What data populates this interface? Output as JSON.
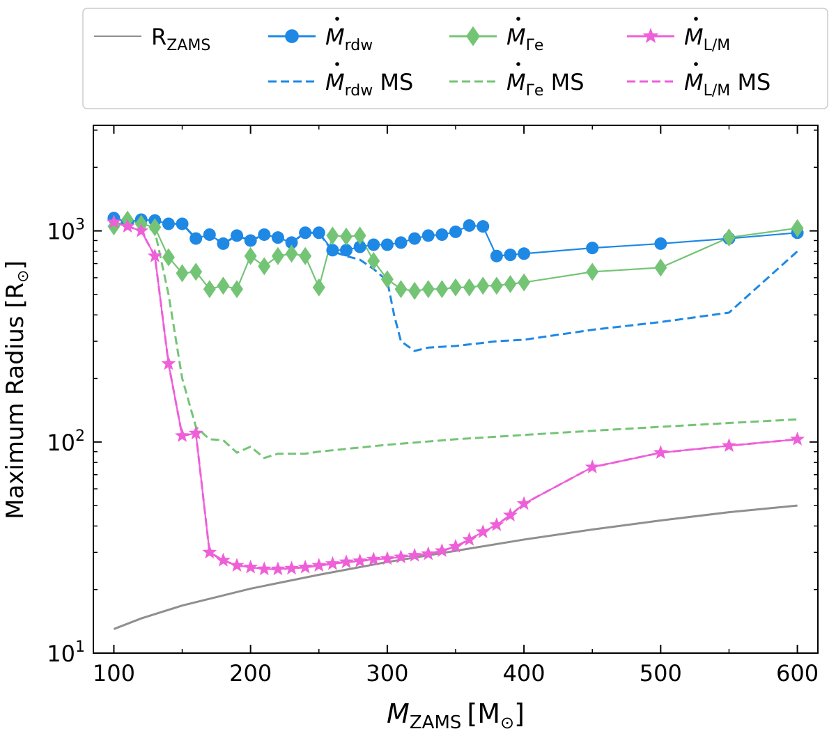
{
  "chart_data": {
    "type": "line",
    "title": "",
    "xlabel": "M_ZAMS [M⊙]",
    "xlabel_parts": {
      "main": "M",
      "sub": "ZAMS",
      "unit": "[M",
      "unit_sym": "⊙",
      "unit_close": "]"
    },
    "ylabel": "Maximum Radius [R⊙]",
    "ylabel_parts": {
      "main": "Maximum Radius [R",
      "sym": "⊙",
      "close": "]"
    },
    "xlim": [
      85,
      615
    ],
    "ylim": [
      10,
      3162
    ],
    "yscale": "log",
    "xticks": [
      100,
      200,
      300,
      400,
      500,
      600
    ],
    "xtick_labels": [
      "100",
      "200",
      "300",
      "400",
      "500",
      "600"
    ],
    "yticks_major": [
      10,
      100,
      1000
    ],
    "ytick_labels": [
      {
        "base": "10",
        "exp": "1"
      },
      {
        "base": "10",
        "exp": "2"
      },
      {
        "base": "10",
        "exp": "3"
      }
    ],
    "legend_position": "top (outside)",
    "series": [
      {
        "name": "R_ZAMS",
        "label_main": "R",
        "label_sub": "ZAMS",
        "label_suffix": "",
        "color": "#8f8f8f",
        "dash": "solid",
        "marker": "none",
        "x": [
          100,
          120,
          150,
          200,
          250,
          300,
          350,
          400,
          450,
          500,
          550,
          600
        ],
        "y": [
          13,
          14.6,
          16.8,
          20.2,
          23.5,
          27,
          30.5,
          34.5,
          38.5,
          42.5,
          46.5,
          50
        ]
      },
      {
        "name": "Ṁrdw",
        "label_main": "M",
        "label_sub": "rdw",
        "label_suffix": "",
        "color": "#1e88e5",
        "dash": "solid",
        "marker": "circle",
        "x": [
          100,
          110,
          120,
          130,
          140,
          150,
          160,
          170,
          180,
          190,
          200,
          210,
          220,
          230,
          240,
          250,
          260,
          270,
          280,
          290,
          300,
          310,
          320,
          330,
          340,
          350,
          360,
          370,
          380,
          390,
          400,
          450,
          500,
          550,
          600
        ],
        "y": [
          1150,
          1100,
          1130,
          1120,
          1080,
          1080,
          920,
          960,
          870,
          950,
          900,
          960,
          930,
          880,
          980,
          980,
          810,
          810,
          840,
          860,
          860,
          880,
          920,
          950,
          960,
          990,
          1060,
          1050,
          760,
          770,
          780,
          830,
          870,
          920,
          980
        ]
      },
      {
        "name": "Ṁrdw MS",
        "label_main": "M",
        "label_sub": "rdw",
        "label_suffix": " MS",
        "color": "#1e88e5",
        "dash": "dashed",
        "marker": "none",
        "x": [
          100,
          110,
          120,
          130,
          140,
          150,
          160,
          170,
          180,
          190,
          200,
          210,
          220,
          230,
          240,
          250,
          260,
          270,
          280,
          290,
          300,
          305,
          310,
          320,
          330,
          350,
          380,
          400,
          450,
          500,
          550,
          600
        ],
        "y": [
          1150,
          1100,
          1130,
          1120,
          1080,
          1080,
          920,
          960,
          870,
          950,
          900,
          960,
          930,
          880,
          980,
          980,
          800,
          760,
          730,
          660,
          580,
          400,
          300,
          270,
          280,
          285,
          300,
          305,
          340,
          370,
          410,
          800
        ]
      },
      {
        "name": "ṀΓe",
        "label_main": "M",
        "label_sub": "Γe",
        "label_suffix": "",
        "color": "#74c476",
        "dash": "solid",
        "marker": "diamond",
        "x": [
          100,
          110,
          120,
          130,
          140,
          150,
          160,
          170,
          180,
          190,
          200,
          210,
          220,
          230,
          240,
          250,
          260,
          270,
          280,
          290,
          300,
          310,
          320,
          330,
          340,
          350,
          360,
          370,
          380,
          390,
          400,
          450,
          500,
          550,
          600
        ],
        "y": [
          1050,
          1130,
          1080,
          1040,
          750,
          630,
          640,
          530,
          550,
          530,
          760,
          680,
          760,
          780,
          760,
          540,
          950,
          940,
          950,
          720,
          590,
          530,
          520,
          530,
          530,
          540,
          540,
          550,
          550,
          560,
          570,
          640,
          670,
          930,
          1030
        ]
      },
      {
        "name": "ṀΓe MS",
        "label_main": "M",
        "label_sub": "Γe",
        "label_suffix": " MS",
        "color": "#74c476",
        "dash": "dashed",
        "marker": "none",
        "x": [
          100,
          110,
          120,
          130,
          140,
          150,
          160,
          170,
          180,
          190,
          200,
          210,
          220,
          230,
          240,
          250,
          300,
          350,
          400,
          450,
          500,
          550,
          600
        ],
        "y": [
          1050,
          1100,
          1060,
          1000,
          500,
          200,
          118,
          103,
          102,
          89,
          95,
          84,
          88,
          88,
          88,
          90,
          97,
          103,
          108,
          113,
          118,
          123,
          128
        ]
      },
      {
        "name": "ṀL/M",
        "label_main": "M",
        "label_sub": "L/M",
        "label_suffix": "",
        "color": "#ee5fd8",
        "dash": "solid",
        "marker": "star",
        "x": [
          100,
          110,
          120,
          130,
          140,
          150,
          160,
          170,
          180,
          190,
          200,
          210,
          220,
          230,
          240,
          250,
          260,
          270,
          280,
          290,
          300,
          310,
          320,
          330,
          340,
          350,
          360,
          370,
          380,
          390,
          400,
          450,
          500,
          550,
          600
        ],
        "y": [
          1100,
          1050,
          1000,
          760,
          235,
          107,
          110,
          30,
          27.5,
          26,
          25.5,
          25,
          25,
          25.2,
          25.5,
          26,
          26.5,
          27,
          27.3,
          27.8,
          28,
          28.5,
          29,
          29.5,
          30.5,
          32,
          34.5,
          37.5,
          40.5,
          45,
          51,
          76,
          89,
          96,
          103
        ]
      },
      {
        "name": "ṀL/M MS",
        "label_main": "M",
        "label_sub": "L/M",
        "label_suffix": " MS",
        "color": "#ee5fd8",
        "dash": "dashed",
        "marker": "none",
        "x": [
          100,
          110,
          120,
          130,
          140,
          150,
          160,
          170,
          180,
          190,
          200,
          210,
          220,
          230,
          240,
          250,
          260,
          270,
          280,
          290,
          300,
          310,
          320,
          330,
          340,
          350,
          360,
          370,
          380,
          390,
          400,
          450,
          500,
          550,
          600
        ],
        "y": [
          1100,
          1050,
          1000,
          760,
          235,
          107,
          110,
          30,
          27.5,
          26,
          25.5,
          25,
          25,
          25.2,
          25.5,
          26,
          26.5,
          27,
          27.3,
          27.8,
          28,
          28.5,
          29,
          29.5,
          30.5,
          32,
          34.5,
          37.5,
          40.5,
          45,
          51,
          76,
          89,
          96,
          103
        ]
      }
    ]
  }
}
